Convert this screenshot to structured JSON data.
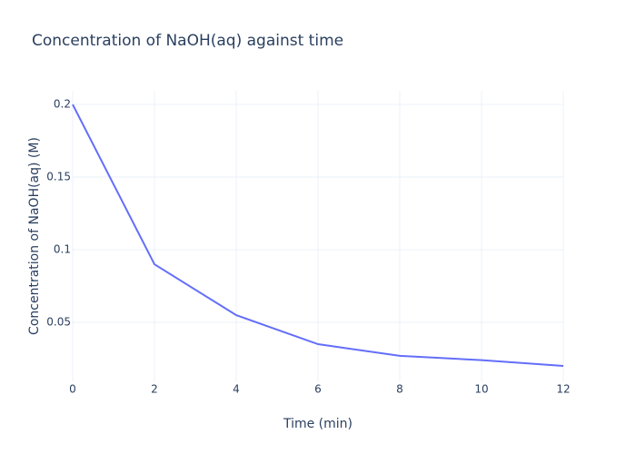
{
  "chart_data": {
    "type": "line",
    "title": "Concentration of NaOH(aq) against time",
    "x_label": "Time (min)",
    "y_label": "Concentration of NaOH(aq) (M)",
    "x": [
      0,
      2,
      4,
      6,
      8,
      10,
      12
    ],
    "series": [
      {
        "color": "#636efa",
        "values": [
          0.2,
          0.09,
          0.055,
          0.035,
          0.027,
          0.024,
          0.02
        ]
      }
    ],
    "xlim": [
      0,
      12
    ],
    "xticks": [
      0,
      2,
      4,
      6,
      8,
      10,
      12
    ],
    "ylim": [
      0.0094,
      0.2094
    ],
    "yticks": [
      0.05,
      0.1,
      0.15,
      0.2
    ],
    "grid": true
  }
}
